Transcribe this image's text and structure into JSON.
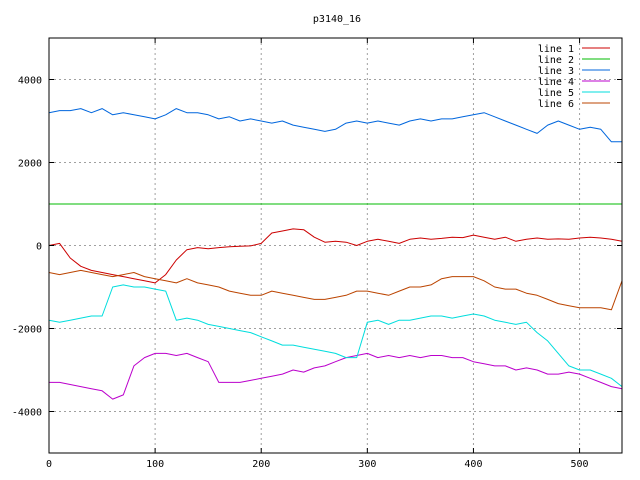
{
  "chart_data": {
    "type": "line",
    "title": "p3140_16",
    "xlabel": "",
    "ylabel": "",
    "xlim": [
      0,
      540
    ],
    "ylim": [
      -5000,
      5000
    ],
    "x_ticks": [
      0,
      100,
      200,
      300,
      400,
      500
    ],
    "y_ticks": [
      -4000,
      -2000,
      0,
      2000,
      4000
    ],
    "grid": true,
    "legend_position": "top-right",
    "series": [
      {
        "name": "line 1",
        "color": "#cc0000",
        "x": [
          0,
          10,
          20,
          30,
          40,
          50,
          60,
          70,
          80,
          90,
          100,
          110,
          120,
          130,
          140,
          150,
          160,
          170,
          180,
          190,
          200,
          210,
          220,
          230,
          240,
          250,
          260,
          270,
          280,
          290,
          300,
          310,
          320,
          330,
          340,
          350,
          360,
          370,
          380,
          390,
          400,
          410,
          420,
          430,
          440,
          450,
          460,
          470,
          480,
          490,
          500,
          510,
          520,
          530,
          540
        ],
        "values": [
          0,
          50,
          -300,
          -500,
          -600,
          -650,
          -700,
          -750,
          -800,
          -850,
          -900,
          -700,
          -350,
          -100,
          -50,
          -80,
          -50,
          -30,
          -20,
          -10,
          50,
          300,
          350,
          400,
          380,
          200,
          80,
          100,
          80,
          0,
          100,
          150,
          100,
          50,
          150,
          180,
          150,
          170,
          200,
          190,
          250,
          200,
          150,
          200,
          100,
          150,
          180,
          150,
          160,
          150,
          180,
          200,
          180,
          150,
          100
        ]
      },
      {
        "name": "line 2",
        "color": "#00bb00",
        "x": [
          0,
          540
        ],
        "values": [
          1000,
          1000
        ]
      },
      {
        "name": "line 3",
        "color": "#0066dd",
        "x": [
          0,
          10,
          20,
          30,
          40,
          50,
          60,
          70,
          80,
          90,
          100,
          110,
          120,
          130,
          140,
          150,
          160,
          170,
          180,
          190,
          200,
          210,
          220,
          230,
          240,
          250,
          260,
          270,
          280,
          290,
          300,
          310,
          320,
          330,
          340,
          350,
          360,
          370,
          380,
          390,
          400,
          410,
          420,
          430,
          440,
          450,
          460,
          470,
          480,
          490,
          500,
          510,
          520,
          530,
          540
        ],
        "values": [
          3200,
          3250,
          3250,
          3300,
          3200,
          3300,
          3150,
          3200,
          3150,
          3100,
          3050,
          3150,
          3300,
          3200,
          3200,
          3150,
          3050,
          3100,
          3000,
          3050,
          3000,
          2950,
          3000,
          2900,
          2850,
          2800,
          2750,
          2800,
          2950,
          3000,
          2950,
          3000,
          2950,
          2900,
          3000,
          3050,
          3000,
          3050,
          3050,
          3100,
          3150,
          3200,
          3100,
          3000,
          2900,
          2800,
          2700,
          2900,
          3000,
          2900,
          2800,
          2850,
          2800,
          2500,
          2500
        ]
      },
      {
        "name": "line 4",
        "color": "#bb00cc",
        "x": [
          0,
          10,
          20,
          30,
          40,
          50,
          60,
          70,
          80,
          90,
          100,
          110,
          120,
          130,
          140,
          150,
          160,
          170,
          180,
          190,
          200,
          210,
          220,
          230,
          240,
          250,
          260,
          270,
          280,
          290,
          300,
          310,
          320,
          330,
          340,
          350,
          360,
          370,
          380,
          390,
          400,
          410,
          420,
          430,
          440,
          450,
          460,
          470,
          480,
          490,
          500,
          510,
          520,
          530,
          540
        ],
        "values": [
          -3300,
          -3300,
          -3350,
          -3400,
          -3450,
          -3500,
          -3700,
          -3600,
          -2900,
          -2700,
          -2600,
          -2600,
          -2650,
          -2600,
          -2700,
          -2800,
          -3300,
          -3300,
          -3300,
          -3250,
          -3200,
          -3150,
          -3100,
          -3000,
          -3050,
          -2950,
          -2900,
          -2800,
          -2700,
          -2650,
          -2600,
          -2700,
          -2650,
          -2700,
          -2650,
          -2700,
          -2650,
          -2650,
          -2700,
          -2700,
          -2800,
          -2850,
          -2900,
          -2900,
          -3000,
          -2950,
          -3000,
          -3100,
          -3100,
          -3050,
          -3100,
          -3200,
          -3300,
          -3400,
          -3450
        ]
      },
      {
        "name": "line 5",
        "color": "#00dddd",
        "x": [
          0,
          10,
          20,
          30,
          40,
          50,
          60,
          70,
          80,
          90,
          100,
          110,
          120,
          130,
          140,
          150,
          160,
          170,
          180,
          190,
          200,
          210,
          220,
          230,
          240,
          250,
          260,
          270,
          280,
          290,
          300,
          310,
          320,
          330,
          340,
          350,
          360,
          370,
          380,
          390,
          400,
          410,
          420,
          430,
          440,
          450,
          460,
          470,
          480,
          490,
          500,
          510,
          520,
          530,
          540
        ],
        "values": [
          -1800,
          -1850,
          -1800,
          -1750,
          -1700,
          -1700,
          -1000,
          -950,
          -1000,
          -1000,
          -1050,
          -1100,
          -1800,
          -1750,
          -1800,
          -1900,
          -1950,
          -2000,
          -2050,
          -2100,
          -2200,
          -2300,
          -2400,
          -2400,
          -2450,
          -2500,
          -2550,
          -2600,
          -2700,
          -2700,
          -1850,
          -1800,
          -1900,
          -1800,
          -1800,
          -1750,
          -1700,
          -1700,
          -1750,
          -1700,
          -1650,
          -1700,
          -1800,
          -1850,
          -1900,
          -1850,
          -2100,
          -2300,
          -2600,
          -2900,
          -3000,
          -3000,
          -3100,
          -3200,
          -3400
        ]
      },
      {
        "name": "line 6",
        "color": "#bb4400",
        "x": [
          0,
          10,
          20,
          30,
          40,
          50,
          60,
          70,
          80,
          90,
          100,
          110,
          120,
          130,
          140,
          150,
          160,
          170,
          180,
          190,
          200,
          210,
          220,
          230,
          240,
          250,
          260,
          270,
          280,
          290,
          300,
          310,
          320,
          330,
          340,
          350,
          360,
          370,
          380,
          390,
          400,
          410,
          420,
          430,
          440,
          450,
          460,
          470,
          480,
          490,
          500,
          510,
          520,
          530,
          540
        ],
        "values": [
          -650,
          -700,
          -650,
          -600,
          -650,
          -700,
          -750,
          -700,
          -650,
          -750,
          -800,
          -850,
          -900,
          -800,
          -900,
          -950,
          -1000,
          -1100,
          -1150,
          -1200,
          -1200,
          -1100,
          -1150,
          -1200,
          -1250,
          -1300,
          -1300,
          -1250,
          -1200,
          -1100,
          -1100,
          -1150,
          -1200,
          -1100,
          -1000,
          -1000,
          -950,
          -800,
          -750,
          -750,
          -750,
          -850,
          -1000,
          -1050,
          -1050,
          -1150,
          -1200,
          -1300,
          -1400,
          -1450,
          -1500,
          -1500,
          -1500,
          -1550,
          -850
        ]
      }
    ]
  }
}
